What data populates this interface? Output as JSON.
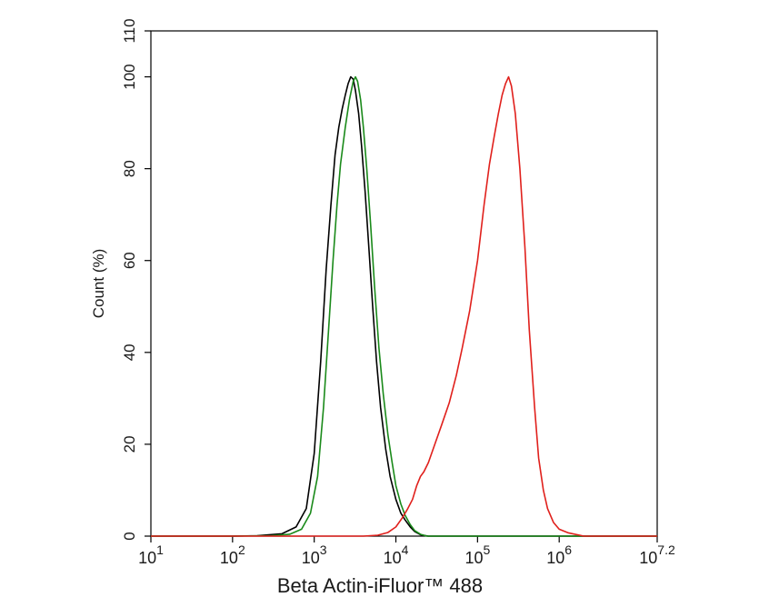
{
  "chart_data": {
    "type": "line",
    "title": "",
    "xlabel": "Beta Actin-iFluor™ 488",
    "ylabel": "Count  (%)",
    "x_scale": "log10",
    "xlim": [
      10,
      15848931.92
    ],
    "ylim": [
      0,
      110
    ],
    "grid": false,
    "x_ticks": [
      {
        "value": 10,
        "base": "10",
        "exp": "1"
      },
      {
        "value": 100,
        "base": "10",
        "exp": "2"
      },
      {
        "value": 1000,
        "base": "10",
        "exp": "3"
      },
      {
        "value": 10000,
        "base": "10",
        "exp": "4"
      },
      {
        "value": 100000,
        "base": "10",
        "exp": "5"
      },
      {
        "value": 1000000,
        "base": "10",
        "exp": "6"
      },
      {
        "value": 15848931.92,
        "base": "10",
        "exp": "7.2"
      }
    ],
    "y_ticks": [
      {
        "value": 0,
        "label": "0"
      },
      {
        "value": 20,
        "label": "20"
      },
      {
        "value": 40,
        "label": "40"
      },
      {
        "value": 60,
        "label": "60"
      },
      {
        "value": 80,
        "label": "80"
      },
      {
        "value": 100,
        "label": "100"
      },
      {
        "value": 110,
        "label": "110"
      }
    ],
    "series": [
      {
        "color": "#000000",
        "points": [
          [
            10,
            0
          ],
          [
            100,
            0
          ],
          [
            200,
            0.1
          ],
          [
            400,
            0.5
          ],
          [
            600,
            2
          ],
          [
            800,
            6
          ],
          [
            1000,
            18
          ],
          [
            1200,
            38
          ],
          [
            1400,
            58
          ],
          [
            1600,
            72
          ],
          [
            1800,
            83
          ],
          [
            2000,
            89
          ],
          [
            2200,
            93
          ],
          [
            2400,
            96
          ],
          [
            2600,
            98.5
          ],
          [
            2800,
            100
          ],
          [
            3000,
            99.5
          ],
          [
            3200,
            97
          ],
          [
            3500,
            92
          ],
          [
            3800,
            85
          ],
          [
            4200,
            75
          ],
          [
            4700,
            62
          ],
          [
            5200,
            50
          ],
          [
            5800,
            38
          ],
          [
            6500,
            28
          ],
          [
            7500,
            19
          ],
          [
            8500,
            13
          ],
          [
            10000,
            8
          ],
          [
            11500,
            5
          ],
          [
            13000,
            3.5
          ],
          [
            15000,
            2
          ],
          [
            17000,
            1
          ],
          [
            20000,
            0.3
          ],
          [
            25000,
            0
          ],
          [
            15848931.92,
            0
          ]
        ]
      },
      {
        "color": "#1a8a1a",
        "points": [
          [
            10,
            0
          ],
          [
            100,
            0
          ],
          [
            300,
            0.1
          ],
          [
            500,
            0.4
          ],
          [
            700,
            1.5
          ],
          [
            900,
            5
          ],
          [
            1100,
            13
          ],
          [
            1300,
            28
          ],
          [
            1500,
            45
          ],
          [
            1700,
            60
          ],
          [
            1900,
            72
          ],
          [
            2100,
            81
          ],
          [
            2400,
            89
          ],
          [
            2700,
            95
          ],
          [
            3000,
            99
          ],
          [
            3200,
            100
          ],
          [
            3400,
            99
          ],
          [
            3700,
            95
          ],
          [
            4000,
            89
          ],
          [
            4400,
            80
          ],
          [
            4900,
            68
          ],
          [
            5500,
            54
          ],
          [
            6200,
            41
          ],
          [
            7000,
            31
          ],
          [
            8000,
            22
          ],
          [
            9000,
            16
          ],
          [
            10000,
            11
          ],
          [
            11500,
            7
          ],
          [
            13000,
            4.5
          ],
          [
            15000,
            2.5
          ],
          [
            17000,
            1.2
          ],
          [
            20000,
            0.4
          ],
          [
            24000,
            0
          ],
          [
            15848931.92,
            0
          ]
        ]
      },
      {
        "color": "#e0201c",
        "points": [
          [
            10,
            0
          ],
          [
            4000,
            0
          ],
          [
            6000,
            0.2
          ],
          [
            8000,
            0.8
          ],
          [
            10000,
            2
          ],
          [
            12000,
            4
          ],
          [
            14000,
            6
          ],
          [
            16000,
            8
          ],
          [
            18000,
            11
          ],
          [
            20000,
            13
          ],
          [
            22000,
            14
          ],
          [
            25000,
            16
          ],
          [
            30000,
            20
          ],
          [
            36000,
            24
          ],
          [
            45000,
            29
          ],
          [
            55000,
            35
          ],
          [
            65000,
            41
          ],
          [
            80000,
            49
          ],
          [
            100000,
            60
          ],
          [
            120000,
            72
          ],
          [
            140000,
            81
          ],
          [
            160000,
            87
          ],
          [
            180000,
            92
          ],
          [
            200000,
            96
          ],
          [
            220000,
            98.5
          ],
          [
            240000,
            100
          ],
          [
            260000,
            98
          ],
          [
            290000,
            92
          ],
          [
            330000,
            80
          ],
          [
            380000,
            63
          ],
          [
            430000,
            45
          ],
          [
            500000,
            28
          ],
          [
            560000,
            17
          ],
          [
            640000,
            10
          ],
          [
            720000,
            6
          ],
          [
            850000,
            3
          ],
          [
            1000000,
            1.5
          ],
          [
            1300000,
            0.7
          ],
          [
            2000000,
            0
          ],
          [
            15848931.92,
            0
          ]
        ]
      }
    ]
  }
}
